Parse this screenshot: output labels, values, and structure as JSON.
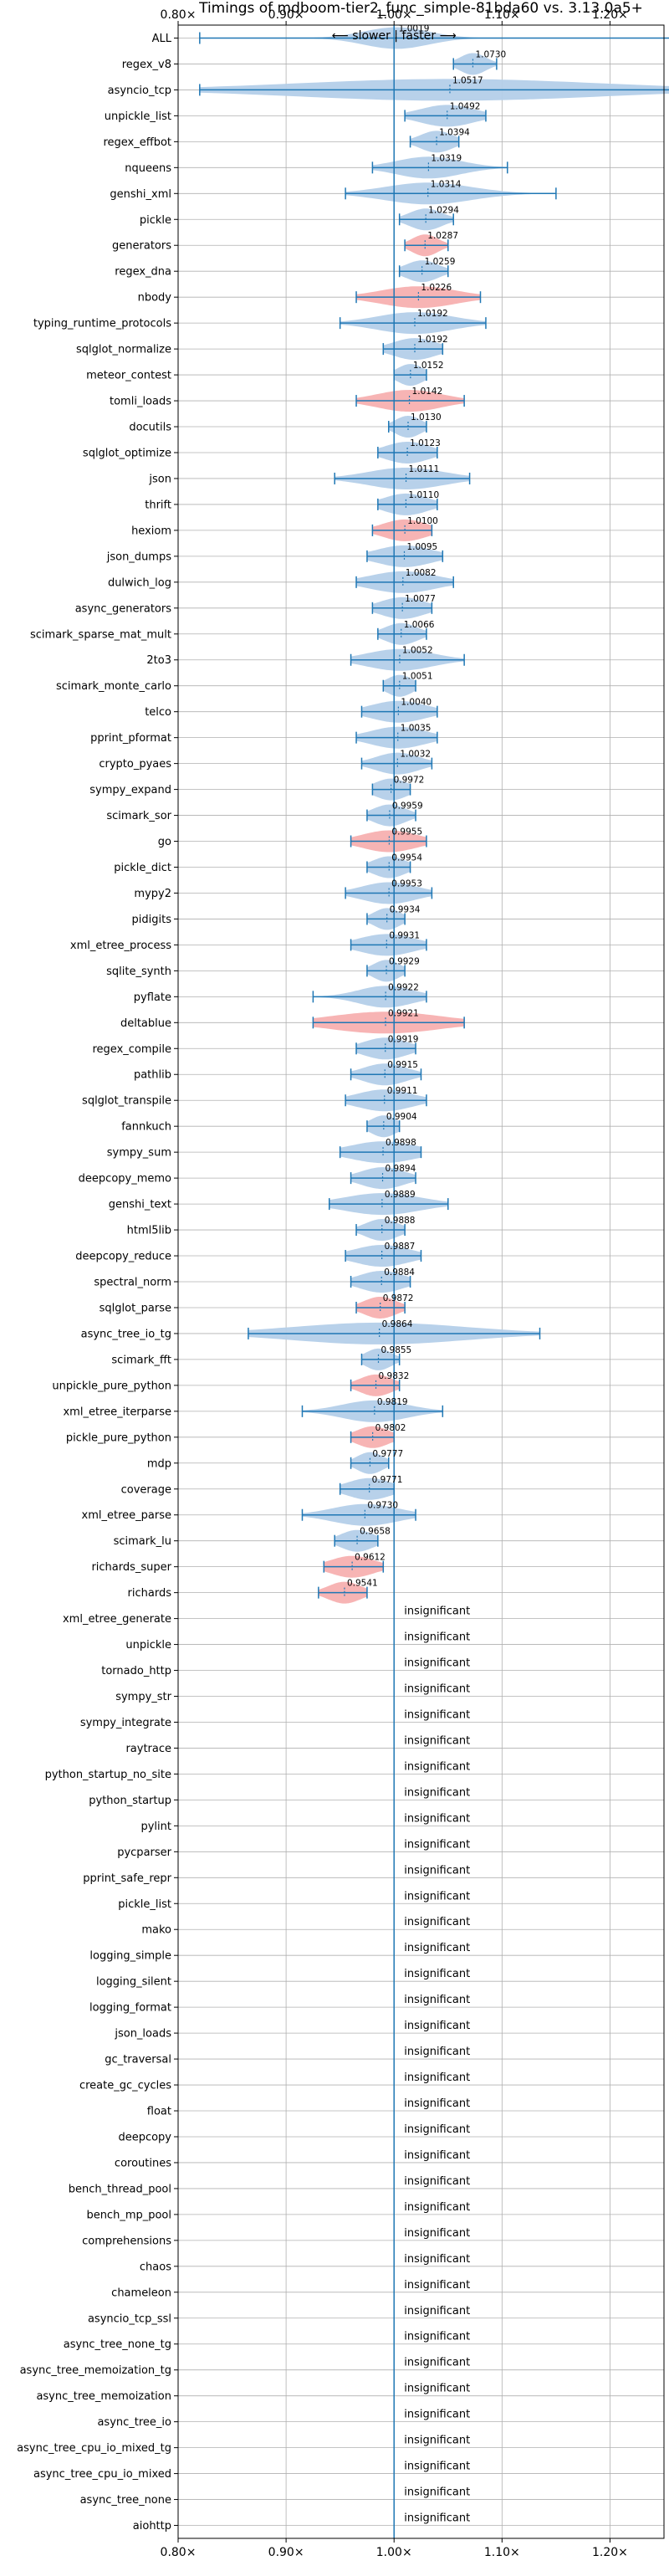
{
  "chart_data": {
    "type": "violin",
    "title": "Timings of mdboom-tier2_func_simple-81bda60 vs. 3.13.0a5+",
    "subtitle": "⟵ slower | faster ⟶",
    "xlim": [
      0.8,
      1.25
    ],
    "xticks": [
      0.8,
      0.9,
      1.0,
      1.1,
      1.2
    ],
    "xtick_labels": [
      "0.80×",
      "0.90×",
      "1.00×",
      "1.10×",
      "1.20×"
    ],
    "reference_line": 1.0,
    "grid": true,
    "colors": {
      "faster": "#b4cfe9",
      "slower": "#f7b0b0",
      "line": "#1f77b4",
      "grid": "#b0b0b0"
    },
    "insignificant_label": "insignificant",
    "benchmarks": [
      {
        "name": "ALL",
        "mean": 1.0019,
        "label": "1.0019",
        "lo": 0.82,
        "hi": 1.27,
        "spread": 0.03,
        "color": "faster"
      },
      {
        "name": "regex_v8",
        "mean": 1.073,
        "label": "1.0730",
        "lo": 1.055,
        "hi": 1.095,
        "spread": 0.012,
        "color": "faster"
      },
      {
        "name": "asyncio_tcp",
        "mean": 1.0517,
        "label": "1.0517",
        "lo": 0.82,
        "hi": 1.27,
        "spread": 0.14,
        "color": "faster"
      },
      {
        "name": "unpickle_list",
        "mean": 1.0492,
        "label": "1.0492",
        "lo": 1.01,
        "hi": 1.085,
        "spread": 0.025,
        "color": "faster"
      },
      {
        "name": "regex_effbot",
        "mean": 1.0394,
        "label": "1.0394",
        "lo": 1.015,
        "hi": 1.06,
        "spread": 0.015,
        "color": "faster"
      },
      {
        "name": "nqueens",
        "mean": 1.0319,
        "label": "1.0319",
        "lo": 0.98,
        "hi": 1.105,
        "spread": 0.03,
        "color": "faster"
      },
      {
        "name": "genshi_xml",
        "mean": 1.0314,
        "label": "1.0314",
        "lo": 0.955,
        "hi": 1.15,
        "spread": 0.04,
        "color": "faster"
      },
      {
        "name": "pickle",
        "mean": 1.0294,
        "label": "1.0294",
        "lo": 1.005,
        "hi": 1.055,
        "spread": 0.015,
        "color": "faster"
      },
      {
        "name": "generators",
        "mean": 1.0287,
        "label": "1.0287",
        "lo": 1.01,
        "hi": 1.05,
        "spread": 0.012,
        "color": "slower"
      },
      {
        "name": "regex_dna",
        "mean": 1.0259,
        "label": "1.0259",
        "lo": 1.005,
        "hi": 1.05,
        "spread": 0.015,
        "color": "faster"
      },
      {
        "name": "nbody",
        "mean": 1.0226,
        "label": "1.0226",
        "lo": 0.965,
        "hi": 1.08,
        "spread": 0.035,
        "color": "slower"
      },
      {
        "name": "typing_runtime_protocols",
        "mean": 1.0192,
        "label": "1.0192",
        "lo": 0.95,
        "hi": 1.085,
        "spread": 0.035,
        "color": "faster"
      },
      {
        "name": "sqlglot_normalize",
        "mean": 1.0192,
        "label": "1.0192",
        "lo": 0.99,
        "hi": 1.045,
        "spread": 0.02,
        "color": "faster"
      },
      {
        "name": "meteor_contest",
        "mean": 1.0152,
        "label": "1.0152",
        "lo": 1.0,
        "hi": 1.03,
        "spread": 0.012,
        "color": "faster"
      },
      {
        "name": "tomli_loads",
        "mean": 1.0142,
        "label": "1.0142",
        "lo": 0.965,
        "hi": 1.065,
        "spread": 0.03,
        "color": "slower"
      },
      {
        "name": "docutils",
        "mean": 1.013,
        "label": "1.0130",
        "lo": 0.995,
        "hi": 1.03,
        "spread": 0.012,
        "color": "faster"
      },
      {
        "name": "sqlglot_optimize",
        "mean": 1.0123,
        "label": "1.0123",
        "lo": 0.985,
        "hi": 1.04,
        "spread": 0.02,
        "color": "faster"
      },
      {
        "name": "json",
        "mean": 1.0111,
        "label": "1.0111",
        "lo": 0.945,
        "hi": 1.07,
        "spread": 0.035,
        "color": "faster"
      },
      {
        "name": "thrift",
        "mean": 1.011,
        "label": "1.0110",
        "lo": 0.985,
        "hi": 1.04,
        "spread": 0.02,
        "color": "faster"
      },
      {
        "name": "hexiom",
        "mean": 1.01,
        "label": "1.0100",
        "lo": 0.98,
        "hi": 1.035,
        "spread": 0.02,
        "color": "slower"
      },
      {
        "name": "json_dumps",
        "mean": 1.0095,
        "label": "1.0095",
        "lo": 0.975,
        "hi": 1.045,
        "spread": 0.025,
        "color": "faster"
      },
      {
        "name": "dulwich_log",
        "mean": 1.0082,
        "label": "1.0082",
        "lo": 0.965,
        "hi": 1.055,
        "spread": 0.03,
        "color": "faster"
      },
      {
        "name": "async_generators",
        "mean": 1.0077,
        "label": "1.0077",
        "lo": 0.98,
        "hi": 1.035,
        "spread": 0.02,
        "color": "faster"
      },
      {
        "name": "scimark_sparse_mat_mult",
        "mean": 1.0066,
        "label": "1.0066",
        "lo": 0.985,
        "hi": 1.03,
        "spread": 0.015,
        "color": "faster"
      },
      {
        "name": "2to3",
        "mean": 1.0052,
        "label": "1.0052",
        "lo": 0.96,
        "hi": 1.065,
        "spread": 0.03,
        "color": "faster"
      },
      {
        "name": "scimark_monte_carlo",
        "mean": 1.0051,
        "label": "1.0051",
        "lo": 0.99,
        "hi": 1.02,
        "spread": 0.012,
        "color": "faster"
      },
      {
        "name": "telco",
        "mean": 1.004,
        "label": "1.0040",
        "lo": 0.97,
        "hi": 1.04,
        "spread": 0.025,
        "color": "faster"
      },
      {
        "name": "pprint_pformat",
        "mean": 1.0035,
        "label": "1.0035",
        "lo": 0.965,
        "hi": 1.04,
        "spread": 0.025,
        "color": "faster"
      },
      {
        "name": "crypto_pyaes",
        "mean": 1.0032,
        "label": "1.0032",
        "lo": 0.97,
        "hi": 1.035,
        "spread": 0.02,
        "color": "faster"
      },
      {
        "name": "sympy_expand",
        "mean": 0.9972,
        "label": "0.9972",
        "lo": 0.98,
        "hi": 1.015,
        "spread": 0.015,
        "color": "faster"
      },
      {
        "name": "scimark_sor",
        "mean": 0.9959,
        "label": "0.9959",
        "lo": 0.975,
        "hi": 1.02,
        "spread": 0.015,
        "color": "faster"
      },
      {
        "name": "go",
        "mean": 0.9955,
        "label": "0.9955",
        "lo": 0.96,
        "hi": 1.03,
        "spread": 0.025,
        "color": "slower"
      },
      {
        "name": "pickle_dict",
        "mean": 0.9954,
        "label": "0.9954",
        "lo": 0.975,
        "hi": 1.015,
        "spread": 0.015,
        "color": "faster"
      },
      {
        "name": "mypy2",
        "mean": 0.9953,
        "label": "0.9953",
        "lo": 0.955,
        "hi": 1.035,
        "spread": 0.025,
        "color": "faster"
      },
      {
        "name": "pidigits",
        "mean": 0.9934,
        "label": "0.9934",
        "lo": 0.975,
        "hi": 1.01,
        "spread": 0.012,
        "color": "faster"
      },
      {
        "name": "xml_etree_process",
        "mean": 0.9931,
        "label": "0.9931",
        "lo": 0.96,
        "hi": 1.03,
        "spread": 0.025,
        "color": "faster"
      },
      {
        "name": "sqlite_synth",
        "mean": 0.9929,
        "label": "0.9929",
        "lo": 0.975,
        "hi": 1.01,
        "spread": 0.012,
        "color": "faster"
      },
      {
        "name": "pyflate",
        "mean": 0.9922,
        "label": "0.9922",
        "lo": 0.925,
        "hi": 1.03,
        "spread": 0.025,
        "color": "faster"
      },
      {
        "name": "deltablue",
        "mean": 0.9921,
        "label": "0.9921",
        "lo": 0.925,
        "hi": 1.065,
        "spread": 0.05,
        "color": "slower"
      },
      {
        "name": "regex_compile",
        "mean": 0.9919,
        "label": "0.9919",
        "lo": 0.965,
        "hi": 1.02,
        "spread": 0.02,
        "color": "faster"
      },
      {
        "name": "pathlib",
        "mean": 0.9915,
        "label": "0.9915",
        "lo": 0.96,
        "hi": 1.025,
        "spread": 0.02,
        "color": "faster"
      },
      {
        "name": "sqlglot_transpile",
        "mean": 0.9911,
        "label": "0.9911",
        "lo": 0.955,
        "hi": 1.03,
        "spread": 0.025,
        "color": "faster"
      },
      {
        "name": "fannkuch",
        "mean": 0.9904,
        "label": "0.9904",
        "lo": 0.975,
        "hi": 1.005,
        "spread": 0.012,
        "color": "faster"
      },
      {
        "name": "sympy_sum",
        "mean": 0.9898,
        "label": "0.9898",
        "lo": 0.95,
        "hi": 1.025,
        "spread": 0.03,
        "color": "faster"
      },
      {
        "name": "deepcopy_memo",
        "mean": 0.9894,
        "label": "0.9894",
        "lo": 0.96,
        "hi": 1.02,
        "spread": 0.02,
        "color": "faster"
      },
      {
        "name": "genshi_text",
        "mean": 0.9889,
        "label": "0.9889",
        "lo": 0.94,
        "hi": 1.05,
        "spread": 0.035,
        "color": "faster"
      },
      {
        "name": "html5lib",
        "mean": 0.9888,
        "label": "0.9888",
        "lo": 0.965,
        "hi": 1.01,
        "spread": 0.015,
        "color": "faster"
      },
      {
        "name": "deepcopy_reduce",
        "mean": 0.9887,
        "label": "0.9887",
        "lo": 0.955,
        "hi": 1.025,
        "spread": 0.025,
        "color": "faster"
      },
      {
        "name": "spectral_norm",
        "mean": 0.9884,
        "label": "0.9884",
        "lo": 0.96,
        "hi": 1.015,
        "spread": 0.02,
        "color": "faster"
      },
      {
        "name": "sqlglot_parse",
        "mean": 0.9872,
        "label": "0.9872",
        "lo": 0.965,
        "hi": 1.01,
        "spread": 0.015,
        "color": "slower"
      },
      {
        "name": "async_tree_io_tg",
        "mean": 0.9864,
        "label": "0.9864",
        "lo": 0.865,
        "hi": 1.135,
        "spread": 0.08,
        "color": "faster"
      },
      {
        "name": "scimark_fft",
        "mean": 0.9855,
        "label": "0.9855",
        "lo": 0.97,
        "hi": 1.005,
        "spread": 0.012,
        "color": "faster"
      },
      {
        "name": "unpickle_pure_python",
        "mean": 0.9832,
        "label": "0.9832",
        "lo": 0.96,
        "hi": 1.005,
        "spread": 0.015,
        "color": "slower"
      },
      {
        "name": "xml_etree_iterparse",
        "mean": 0.9819,
        "label": "0.9819",
        "lo": 0.915,
        "hi": 1.045,
        "spread": 0.03,
        "color": "faster"
      },
      {
        "name": "pickle_pure_python",
        "mean": 0.9802,
        "label": "0.9802",
        "lo": 0.96,
        "hi": 1.0,
        "spread": 0.015,
        "color": "slower"
      },
      {
        "name": "mdp",
        "mean": 0.9777,
        "label": "0.9777",
        "lo": 0.96,
        "hi": 0.995,
        "spread": 0.012,
        "color": "faster"
      },
      {
        "name": "coverage",
        "mean": 0.9771,
        "label": "0.9771",
        "lo": 0.95,
        "hi": 1.0,
        "spread": 0.02,
        "color": "faster"
      },
      {
        "name": "xml_etree_parse",
        "mean": 0.973,
        "label": "0.9730",
        "lo": 0.915,
        "hi": 1.02,
        "spread": 0.03,
        "color": "faster"
      },
      {
        "name": "scimark_lu",
        "mean": 0.9658,
        "label": "0.9658",
        "lo": 0.945,
        "hi": 0.985,
        "spread": 0.015,
        "color": "faster"
      },
      {
        "name": "richards_super",
        "mean": 0.9612,
        "label": "0.9612",
        "lo": 0.935,
        "hi": 0.99,
        "spread": 0.02,
        "color": "slower"
      },
      {
        "name": "richards",
        "mean": 0.9541,
        "label": "0.9541",
        "lo": 0.93,
        "hi": 0.975,
        "spread": 0.015,
        "color": "slower"
      }
    ],
    "insignificant": [
      "xml_etree_generate",
      "unpickle",
      "tornado_http",
      "sympy_str",
      "sympy_integrate",
      "raytrace",
      "python_startup_no_site",
      "python_startup",
      "pylint",
      "pycparser",
      "pprint_safe_repr",
      "pickle_list",
      "mako",
      "logging_simple",
      "logging_silent",
      "logging_format",
      "json_loads",
      "gc_traversal",
      "create_gc_cycles",
      "float",
      "deepcopy",
      "coroutines",
      "bench_thread_pool",
      "bench_mp_pool",
      "comprehensions",
      "chaos",
      "chameleon",
      "asyncio_tcp_ssl",
      "async_tree_none_tg",
      "async_tree_memoization_tg",
      "async_tree_memoization",
      "async_tree_io",
      "async_tree_cpu_io_mixed_tg",
      "async_tree_cpu_io_mixed",
      "async_tree_none",
      "aiohttp"
    ]
  }
}
